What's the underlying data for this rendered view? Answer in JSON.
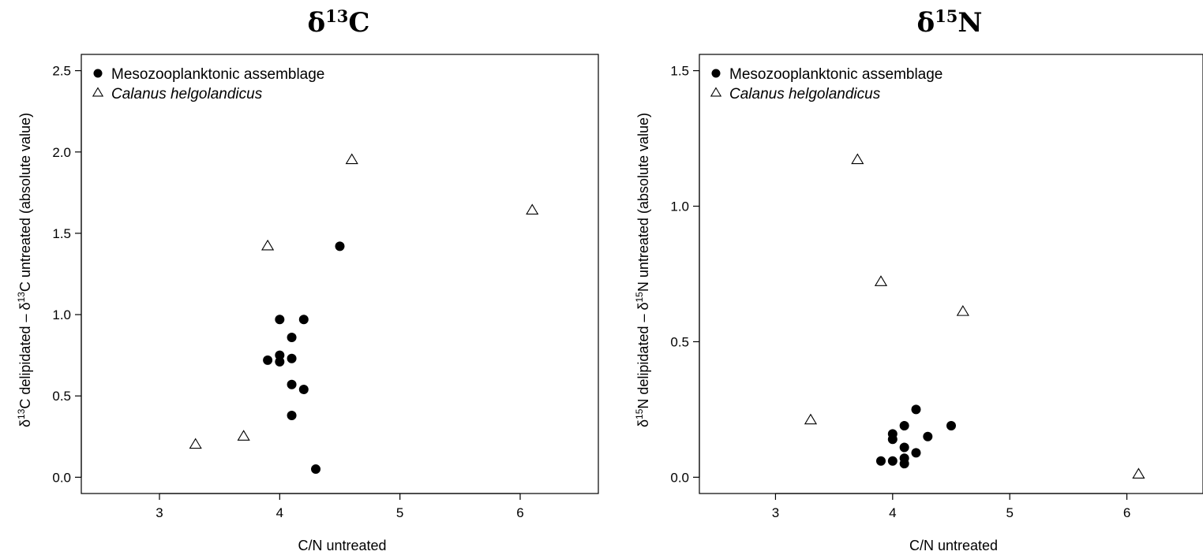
{
  "chart_data": [
    {
      "type": "scatter",
      "title": "δ13C",
      "title_parts": {
        "main": "δ",
        "sup": "13",
        "rest": "C"
      },
      "xlabel": "C/N untreated",
      "ylabel": "δ13C delipidated – δ13C untreated (absolute value)",
      "ylabel_parts": {
        "a": "δ",
        "sup1": "13",
        "b": "C delipidated – δ",
        "sup2": "13",
        "c": "C untreated (absolute value)"
      },
      "xlim": [
        2.35,
        6.65
      ],
      "ylim": [
        -0.1,
        2.6
      ],
      "xticks": [
        3,
        4,
        5,
        6
      ],
      "xtick_labels": [
        "3",
        "4",
        "5",
        "6"
      ],
      "yticks": [
        0.0,
        0.5,
        1.0,
        1.5,
        2.0,
        2.5
      ],
      "ytick_labels": [
        "0.0",
        "0.5",
        "1.0",
        "1.5",
        "2.0",
        "2.5"
      ],
      "legend_position": "top-left",
      "series": [
        {
          "name": "Mesozooplanktonic assemblage",
          "marker": "filled-circle",
          "color": "#000000",
          "points": [
            [
              4.5,
              1.42
            ],
            [
              4.0,
              0.97
            ],
            [
              4.2,
              0.97
            ],
            [
              4.1,
              0.86
            ],
            [
              4.0,
              0.75
            ],
            [
              4.1,
              0.73
            ],
            [
              3.9,
              0.72
            ],
            [
              4.0,
              0.71
            ],
            [
              4.1,
              0.57
            ],
            [
              4.2,
              0.54
            ],
            [
              4.1,
              0.38
            ],
            [
              4.3,
              0.05
            ]
          ]
        },
        {
          "name": "Calanus helgolandicus",
          "name_style": "italic",
          "marker": "open-triangle",
          "color": "#000000",
          "points": [
            [
              4.6,
              1.95
            ],
            [
              6.1,
              1.64
            ],
            [
              3.9,
              1.42
            ],
            [
              3.7,
              0.25
            ],
            [
              3.3,
              0.2
            ]
          ]
        }
      ]
    },
    {
      "type": "scatter",
      "title": "δ15N",
      "title_parts": {
        "main": "δ",
        "sup": "15",
        "rest": "N"
      },
      "xlabel": "C/N untreated",
      "ylabel": "δ15N delipidated – δ15N untreated (absolute value)",
      "ylabel_parts": {
        "a": "δ",
        "sup1": "15",
        "b": "N delipidated – δ",
        "sup2": "15",
        "c": "N untreated (absolute value)"
      },
      "xlim": [
        2.35,
        6.65
      ],
      "ylim": [
        -0.06,
        1.56
      ],
      "xticks": [
        3,
        4,
        5,
        6
      ],
      "xtick_labels": [
        "3",
        "4",
        "5",
        "6"
      ],
      "yticks": [
        0.0,
        0.5,
        1.0,
        1.5
      ],
      "ytick_labels": [
        "0.0",
        "0.5",
        "1.0",
        "1.5"
      ],
      "legend_position": "top-left",
      "series": [
        {
          "name": "Mesozooplanktonic assemblage",
          "marker": "filled-circle",
          "color": "#000000",
          "points": [
            [
              4.2,
              0.25
            ],
            [
              4.5,
              0.19
            ],
            [
              4.1,
              0.19
            ],
            [
              4.0,
              0.16
            ],
            [
              4.3,
              0.15
            ],
            [
              4.0,
              0.14
            ],
            [
              4.1,
              0.11
            ],
            [
              4.2,
              0.09
            ],
            [
              4.1,
              0.07
            ],
            [
              3.9,
              0.06
            ],
            [
              4.0,
              0.06
            ],
            [
              4.1,
              0.05
            ]
          ]
        },
        {
          "name": "Calanus helgolandicus",
          "name_style": "italic",
          "marker": "open-triangle",
          "color": "#000000",
          "points": [
            [
              3.7,
              1.17
            ],
            [
              3.9,
              0.72
            ],
            [
              4.6,
              0.61
            ],
            [
              3.3,
              0.21
            ],
            [
              6.1,
              0.01
            ]
          ]
        }
      ]
    }
  ]
}
